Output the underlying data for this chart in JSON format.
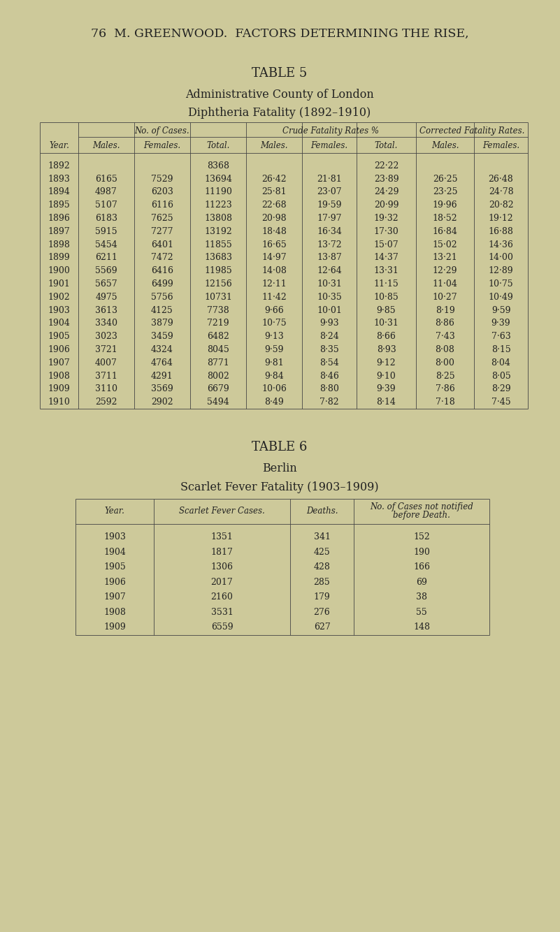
{
  "bg_color": "#cdc99a",
  "text_color": "#222222",
  "line_color": "#444444",
  "header_text": "76  M. GREENWOOD.  FACTORS DETERMINING THE RISE,",
  "table5_title": "TABLE 5",
  "table5_subtitle1": "Administrative County of London",
  "table5_subtitle2": "Diphtheria Fatality (1892–1910)",
  "table5_col_headers_top": [
    "No. of Cases.",
    "Crude Fatality Rates %",
    "Corrected Fatality Rates."
  ],
  "table5_col_headers_sub": [
    "Year.",
    "Males.",
    "Females.",
    "Total.",
    "Males.",
    "Females.",
    "Total.",
    "Males.",
    "Females."
  ],
  "table5_data": [
    [
      "1892",
      "",
      "",
      "8368",
      "",
      "",
      "22·22",
      "",
      ""
    ],
    [
      "1893",
      "6165",
      "7529",
      "13694",
      "26·42",
      "21·81",
      "23·89",
      "26·25",
      "26·48"
    ],
    [
      "1894",
      "4987",
      "6203",
      "11190",
      "25·81",
      "23·07",
      "24·29",
      "23·25",
      "24·78"
    ],
    [
      "1895",
      "5107",
      "6116",
      "11223",
      "22·68",
      "19·59",
      "20·99",
      "19·96",
      "20·82"
    ],
    [
      "1896",
      "6183",
      "7625",
      "13808",
      "20·98",
      "17·97",
      "19·32",
      "18·52",
      "19·12"
    ],
    [
      "1897",
      "5915",
      "7277",
      "13192",
      "18·48",
      "16·34",
      "17·30",
      "16·84",
      "16·88"
    ],
    [
      "1898",
      "5454",
      "6401",
      "11855",
      "16·65",
      "13·72",
      "15·07",
      "15·02",
      "14·36"
    ],
    [
      "1899",
      "6211",
      "7472",
      "13683",
      "14·97",
      "13·87",
      "14·37",
      "13·21",
      "14·00"
    ],
    [
      "1900",
      "5569",
      "6416",
      "11985",
      "14·08",
      "12·64",
      "13·31",
      "12·29",
      "12·89"
    ],
    [
      "1901",
      "5657",
      "6499",
      "12156",
      "12·11",
      "10·31",
      "11·15",
      "11·04",
      "10·75"
    ],
    [
      "1902",
      "4975",
      "5756",
      "10731",
      "11·42",
      "10·35",
      "10·85",
      "10·27",
      "10·49"
    ],
    [
      "1903",
      "3613",
      "4125",
      "7738",
      "9·66",
      "10·01",
      "9·85",
      "8·19",
      "9·59"
    ],
    [
      "1904",
      "3340",
      "3879",
      "7219",
      "10·75",
      "9·93",
      "10·31",
      "8·86",
      "9·39"
    ],
    [
      "1905",
      "3023",
      "3459",
      "6482",
      "9·13",
      "8·24",
      "8·66",
      "7·43",
      "7·63"
    ],
    [
      "1906",
      "3721",
      "4324",
      "8045",
      "9·59",
      "8·35",
      "8·93",
      "8·08",
      "8·15"
    ],
    [
      "1907",
      "4007",
      "4764",
      "8771",
      "9·81",
      "8·54",
      "9·12",
      "8·00",
      "8·04"
    ],
    [
      "1908",
      "3711",
      "4291",
      "8002",
      "9·84",
      "8·46",
      "9·10",
      "8·25",
      "8·05"
    ],
    [
      "1909",
      "3110",
      "3569",
      "6679",
      "10·06",
      "8·80",
      "9·39",
      "7·86",
      "8·29"
    ],
    [
      "1910",
      "2592",
      "2902",
      "5494",
      "8·49",
      "7·82",
      "8·14",
      "7·18",
      "7·45"
    ]
  ],
  "table6_title": "TABLE 6",
  "table6_subtitle1": "Berlin",
  "table6_subtitle2": "Scarlet Fever Fatality (1903–1909)",
  "table6_col_headers": [
    "Year.",
    "Scarlet Fever Cases.",
    "Deaths.",
    "No. of Cases not notified\nbefore Death."
  ],
  "table6_data": [
    [
      "1903",
      "1351",
      "341",
      "152"
    ],
    [
      "1904",
      "1817",
      "425",
      "190"
    ],
    [
      "1905",
      "1306",
      "428",
      "166"
    ],
    [
      "1906",
      "2017",
      "285",
      "69"
    ],
    [
      "1907",
      "2160",
      "179",
      "38"
    ],
    [
      "1908",
      "3531",
      "276",
      "55"
    ],
    [
      "1909",
      "6559",
      "627",
      "148"
    ]
  ]
}
